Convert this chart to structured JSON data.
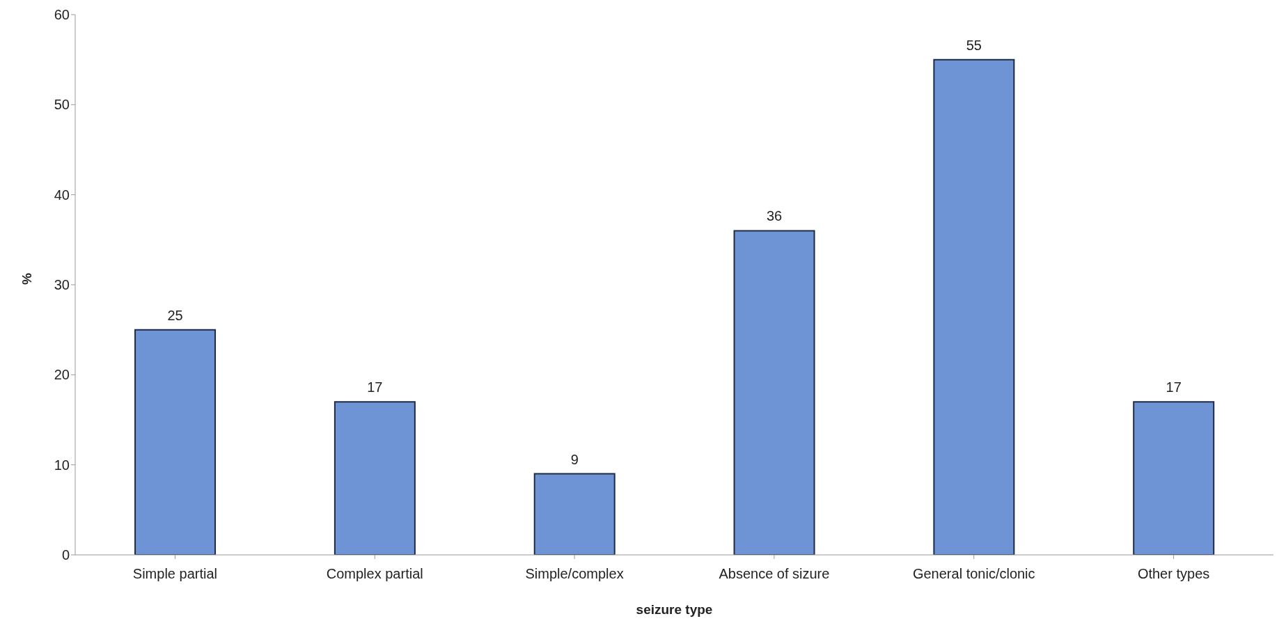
{
  "chart_data": {
    "type": "bar",
    "xlabel": "seizure type",
    "ylabel": "%",
    "categories": [
      "Simple partial",
      "Complex partial",
      "Simple/complex",
      "Absence of sizure",
      "General tonic/clonic",
      "Other types"
    ],
    "values": [
      25,
      17,
      9,
      36,
      55,
      17
    ],
    "color": "#6f94d6",
    "ylim": [
      0,
      60
    ],
    "yticks": [
      0,
      10,
      20,
      30,
      40,
      50,
      60
    ],
    "grid": false,
    "data_labels": true
  }
}
